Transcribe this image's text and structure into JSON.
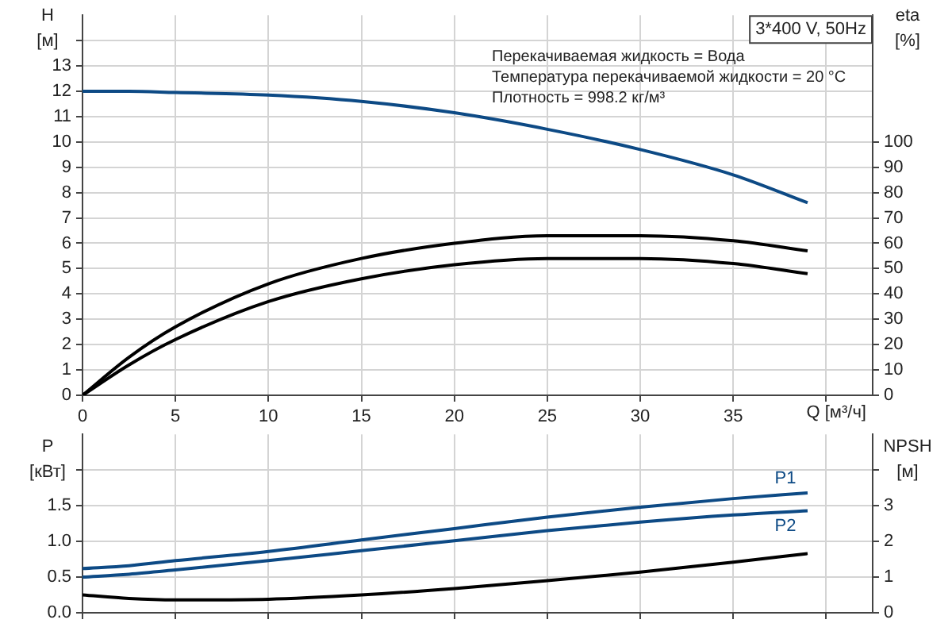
{
  "chart_data": [
    {
      "type": "line",
      "title": "3*400 V, 50Hz",
      "annotations": [
        "Перекачиваемая жидкость = Вода",
        "Температура перекачиваемой жидкости = 20 °C",
        "Плотность = 998.2 кг/м³"
      ],
      "xlabel": "Q [м³/ч]",
      "ylabel": "H [м]",
      "y2label": "eta [%]",
      "xlim": [
        0,
        42.5
      ],
      "xticks": [
        0,
        5,
        10,
        15,
        20,
        25,
        30,
        35,
        {
          "value": 40,
          "label": null
        }
      ],
      "ylim": [
        0,
        15
      ],
      "yticks": [
        0,
        1,
        2,
        3,
        4,
        5,
        6,
        7,
        8,
        9,
        10,
        11,
        12,
        13,
        {
          "value": 14,
          "label": null
        }
      ],
      "y2lim": [
        0,
        150
      ],
      "y2ticks": [
        0,
        10,
        20,
        30,
        40,
        50,
        60,
        70,
        80,
        90,
        100
      ],
      "grid": true,
      "x": [
        0,
        2.5,
        5,
        10,
        15,
        20,
        25,
        30,
        35,
        39
      ],
      "series": [
        {
          "color": "#0d4a85",
          "values": [
            12,
            12,
            11.95,
            11.85,
            11.6,
            11.15,
            10.5,
            9.7,
            8.7,
            7.6
          ]
        },
        {
          "color": "#000000",
          "axis": "y2",
          "values": [
            0,
            15,
            27,
            44,
            54,
            60,
            63,
            63,
            61,
            57
          ]
        },
        {
          "color": "#000000",
          "axis": "y2",
          "values": [
            0,
            12,
            22,
            37,
            46,
            51.5,
            54,
            54,
            52,
            48
          ]
        }
      ]
    },
    {
      "type": "line",
      "ylabel": "P [кВт]",
      "y2label": "NPSH [м]",
      "xlim": [
        0,
        42.5
      ],
      "xticks": [
        0,
        5,
        10,
        15,
        20,
        25,
        30,
        35,
        40
      ],
      "ylim": [
        0,
        2.5
      ],
      "yticks": [
        {
          "value": 0,
          "label": "0.0"
        },
        0.5,
        {
          "value": 1,
          "label": "1.0"
        },
        1.5,
        {
          "value": 2,
          "label": null
        }
      ],
      "y2lim": [
        0,
        5
      ],
      "y2ticks": [
        0,
        1,
        2,
        3,
        {
          "value": 4,
          "label": null
        }
      ],
      "grid": true,
      "tick_labels": "y",
      "x": [
        0,
        2.5,
        5,
        10,
        15,
        20,
        25,
        30,
        35,
        39
      ],
      "series": [
        {
          "name": "P1",
          "color": "#0d4a85",
          "values": [
            0.62,
            0.66,
            0.73,
            0.86,
            1.02,
            1.18,
            1.34,
            1.48,
            1.6,
            1.68
          ]
        },
        {
          "name": "P2",
          "color": "#0d4a85",
          "values": [
            0.5,
            0.54,
            0.6,
            0.73,
            0.87,
            1.01,
            1.15,
            1.27,
            1.37,
            1.43
          ]
        },
        {
          "color": "#000000",
          "axis": "y2",
          "values": [
            0.5,
            0.4,
            0.36,
            0.38,
            0.5,
            0.68,
            0.9,
            1.14,
            1.42,
            1.66
          ]
        }
      ]
    }
  ]
}
